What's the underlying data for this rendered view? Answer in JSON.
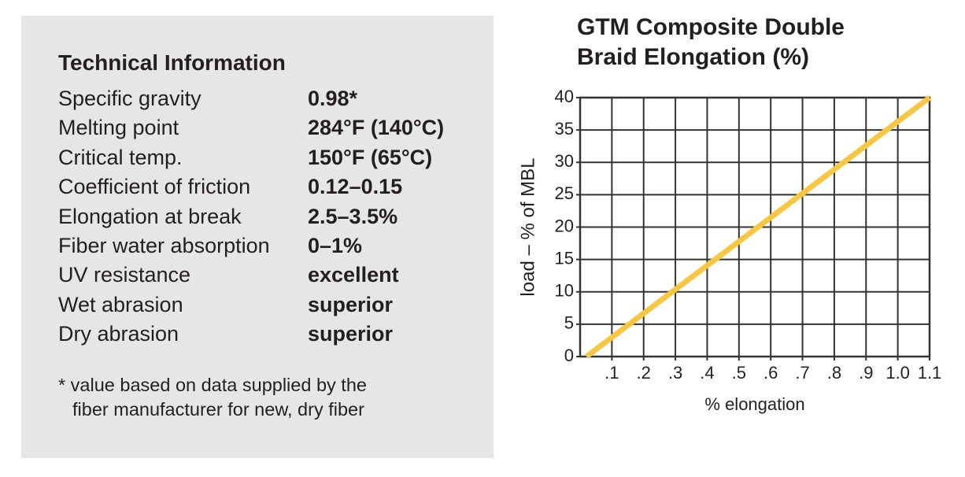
{
  "technical_information": {
    "title": "Technical Information",
    "rows": [
      [
        "Specific gravity",
        "0.98*"
      ],
      [
        "Melting point",
        "284°F (140°C)"
      ],
      [
        "Critical temp.",
        "150°F (65°C)"
      ],
      [
        "Coefficient of friction",
        "0.12–0.15"
      ],
      [
        "Elongation at break",
        "2.5–3.5%"
      ],
      [
        "Fiber water absorption",
        "0–1%"
      ],
      [
        "UV resistance",
        "excellent"
      ],
      [
        "Wet abrasion",
        "superior"
      ],
      [
        "Dry abrasion",
        "superior"
      ]
    ],
    "footnote": [
      "* value based on data supplied by the",
      "fiber manufacturer for new, dry fiber"
    ]
  },
  "chart_data": {
    "type": "line",
    "title": "GTM Composite Double Braid Elongation (%)",
    "xlabel": "% elongation",
    "ylabel": "load – % of MBL",
    "x": [
      0.02,
      1.1
    ],
    "values": [
      0,
      40
    ],
    "color": "#f7c744",
    "xlim": [
      0,
      1.1
    ],
    "ylim": [
      0,
      40
    ],
    "xticks": [
      {
        "value": 0.1,
        "label": ".1"
      },
      {
        "value": 0.2,
        "label": ".2"
      },
      {
        "value": 0.3,
        "label": ".3"
      },
      {
        "value": 0.4,
        "label": ".4"
      },
      {
        "value": 0.5,
        "label": ".5"
      },
      {
        "value": 0.6,
        "label": ".6"
      },
      {
        "value": 0.7,
        "label": ".7"
      },
      {
        "value": 0.8,
        "label": ".8"
      },
      {
        "value": 0.9,
        "label": ".9"
      },
      {
        "value": 1.0,
        "label": "1.0"
      },
      1.1
    ],
    "yticks": [
      0,
      5,
      10,
      15,
      20,
      25,
      30,
      35,
      40
    ],
    "grid": true
  }
}
